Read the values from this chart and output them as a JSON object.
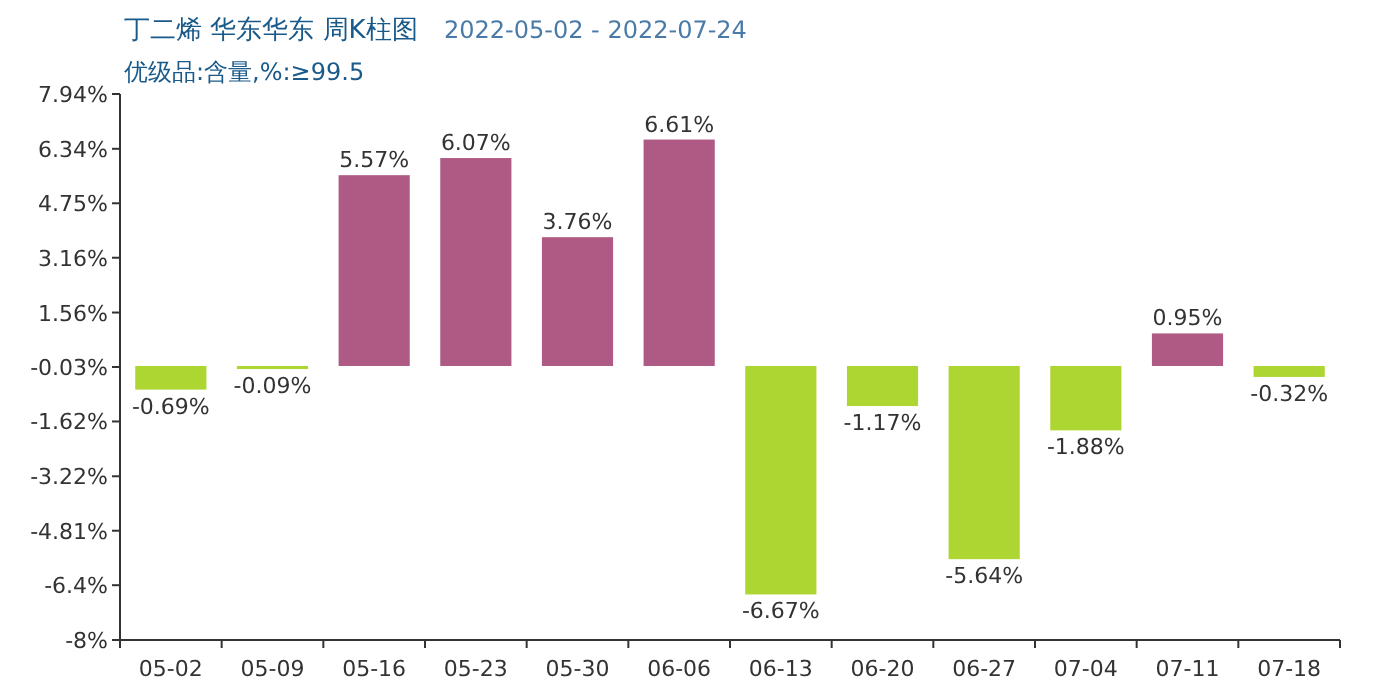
{
  "chart_data": {
    "type": "bar",
    "title": "丁二烯 华东华东 周K柱图",
    "subtitle": "优级品:含量,%:≥99.5",
    "annotations": [
      "2022-05-02 - 2022-07-24"
    ],
    "categories": [
      "05-02",
      "05-09",
      "05-16",
      "05-23",
      "05-30",
      "06-06",
      "06-13",
      "06-20",
      "06-27",
      "07-04",
      "07-11",
      "07-18"
    ],
    "values": [
      -0.69,
      -0.09,
      5.57,
      6.07,
      3.76,
      6.61,
      -6.67,
      -1.17,
      -5.64,
      -1.88,
      0.95,
      -0.32
    ],
    "value_labels": [
      "-0.69%",
      "-0.09%",
      "5.57%",
      "6.07%",
      "3.76%",
      "6.61%",
      "-6.67%",
      "-1.17%",
      "-5.64%",
      "-1.88%",
      "0.95%",
      "-0.32%"
    ],
    "colors": [
      "#add633",
      "#add633",
      "#ae5a84",
      "#ae5a84",
      "#ae5a84",
      "#ae5a84",
      "#add633",
      "#add633",
      "#add633",
      "#add633",
      "#ae5a84",
      "#add633"
    ],
    "ylim": [
      -8,
      7.94
    ],
    "yticks": [
      {
        "value": 7.94,
        "label": "7.94%"
      },
      {
        "value": 6.34,
        "label": "6.34%"
      },
      {
        "value": 4.75,
        "label": "4.75%"
      },
      {
        "value": 3.16,
        "label": "3.16%"
      },
      {
        "value": 1.56,
        "label": "1.56%"
      },
      {
        "value": -0.03,
        "label": "-0.03%"
      },
      {
        "value": -1.62,
        "label": "-1.62%"
      },
      {
        "value": -3.22,
        "label": "-3.22%"
      },
      {
        "value": -4.81,
        "label": "-4.81%"
      },
      {
        "value": -6.4,
        "label": "-6.4%"
      },
      {
        "value": -8,
        "label": "-8%"
      }
    ],
    "grid": false
  }
}
